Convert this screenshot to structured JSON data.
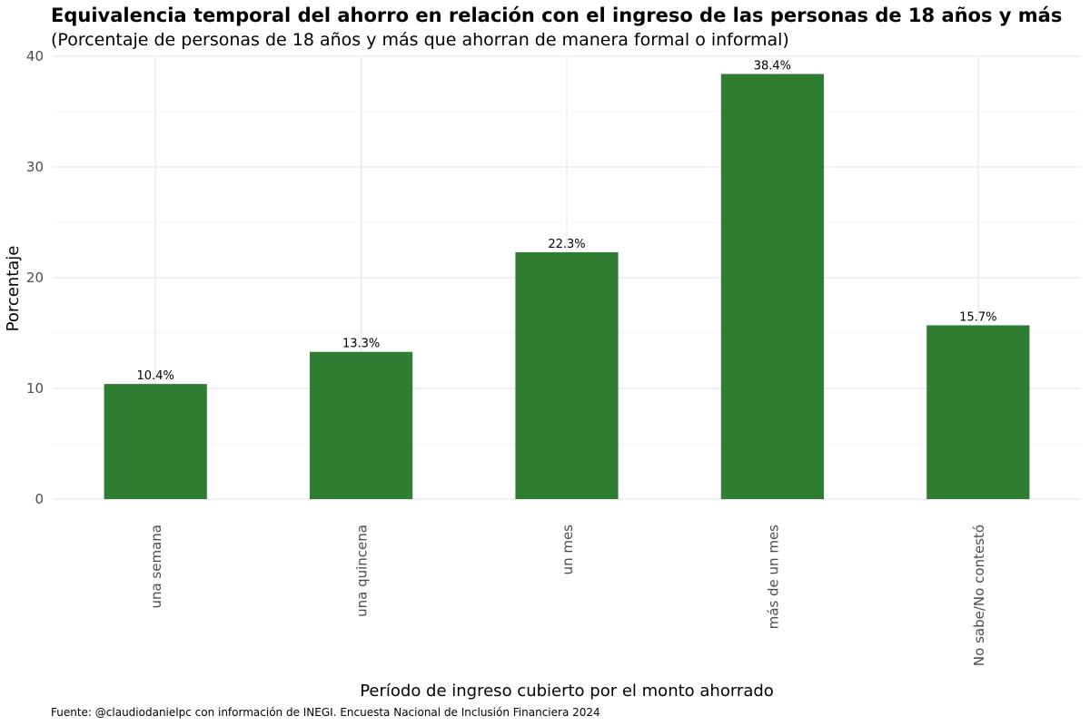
{
  "chart_data": {
    "type": "bar",
    "title": "Equivalencia temporal del ahorro en relación con el ingreso de las personas de 18 años y más",
    "subtitle": "(Porcentaje de personas de 18 años y más que ahorran de manera formal o informal)",
    "xlabel": "Período de ingreso cubierto por el monto ahorrado",
    "ylabel": "Porcentaje",
    "categories": [
      "una semana",
      "una quincena",
      "un mes",
      "más de un mes",
      "No sabe/No contestó"
    ],
    "values": [
      10.4,
      13.3,
      22.3,
      38.4,
      15.7
    ],
    "data_labels": [
      "10.4%",
      "13.3%",
      "22.3%",
      "38.4%",
      "15.7%"
    ],
    "yticks": [
      0,
      10,
      20,
      30,
      40
    ],
    "ylim": [
      0,
      40
    ],
    "grid": true,
    "legend": "none",
    "bar_color": "#2e7d32",
    "caption": "Fuente: @claudiodanielpc con información de INEGI. Encuesta Nacional de Inclusión Financiera 2024"
  }
}
